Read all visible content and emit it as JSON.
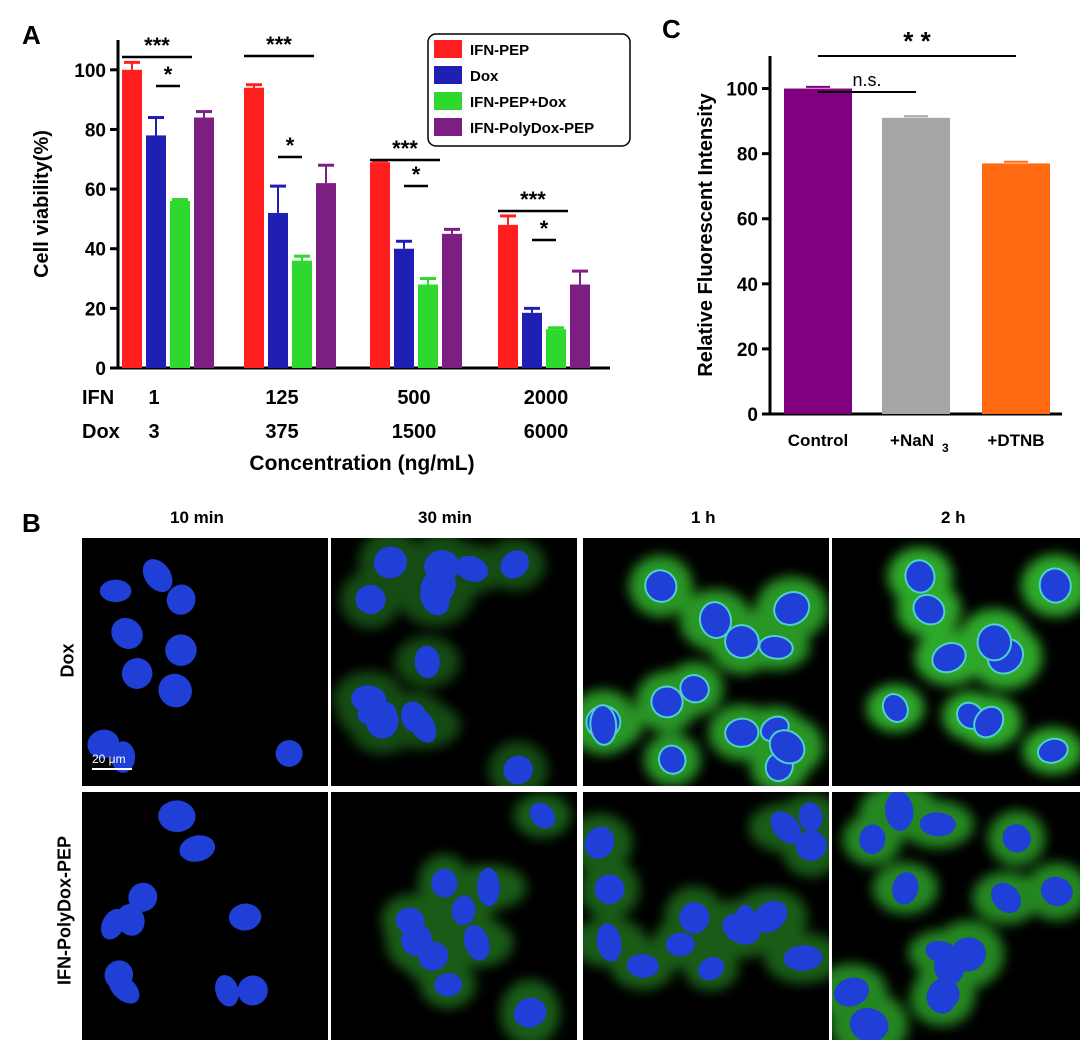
{
  "panels": {
    "a": "A",
    "b": "B",
    "c": "C"
  },
  "chart_data": [
    {
      "type": "bar",
      "title": "",
      "ylabel": "Cell viability(%)",
      "xlabel": "Concentration (ng/mL)",
      "ylim": [
        0,
        110
      ],
      "yticks": [
        0,
        20,
        40,
        60,
        80,
        100
      ],
      "row_labels": [
        "IFN",
        "Dox"
      ],
      "categories": [
        {
          "ifn": "1",
          "dox": "3"
        },
        {
          "ifn": "125",
          "dox": "375"
        },
        {
          "ifn": "500",
          "dox": "1500"
        },
        {
          "ifn": "2000",
          "dox": "6000"
        }
      ],
      "series": [
        {
          "name": "IFN-PEP",
          "color": "#ff1f1f",
          "values": [
            100,
            94,
            69,
            48
          ],
          "errors": [
            2.5,
            1,
            0.5,
            3
          ]
        },
        {
          "name": "Dox",
          "color": "#1f1fb3",
          "values": [
            78,
            52,
            40,
            18.5
          ],
          "errors": [
            6,
            9,
            2.5,
            1.5
          ]
        },
        {
          "name": "IFN-PEP+Dox",
          "color": "#2ed82e",
          "values": [
            56,
            36,
            28,
            13
          ],
          "errors": [
            0.5,
            1.5,
            2,
            0.5
          ]
        },
        {
          "name": "IFN-PolyDox-PEP",
          "color": "#7d1f82",
          "values": [
            84,
            62,
            45,
            28
          ],
          "errors": [
            2,
            6,
            1.5,
            4.5
          ]
        }
      ],
      "legend_position": "top-right",
      "significance": [
        {
          "label": "***",
          "group": 0,
          "from": 0,
          "to": 2
        },
        {
          "label": "*",
          "group": 0,
          "from": 1,
          "to": 2
        },
        {
          "label": "***",
          "group": 1,
          "from": 0,
          "to": 2
        },
        {
          "label": "*",
          "group": 1,
          "from": 1,
          "to": 2
        },
        {
          "label": "***",
          "group": 2,
          "from": 0,
          "to": 2
        },
        {
          "label": "*",
          "group": 2,
          "from": 1,
          "to": 2
        },
        {
          "label": "***",
          "group": 3,
          "from": 0,
          "to": 2
        },
        {
          "label": "*",
          "group": 3,
          "from": 1,
          "to": 2
        }
      ]
    },
    {
      "type": "bar",
      "title": "",
      "ylabel": "Relative Fluorescent Intensity",
      "xlabel": "",
      "ylim": [
        0,
        110
      ],
      "yticks": [
        0,
        20,
        40,
        60,
        80,
        100
      ],
      "categories": [
        "Control",
        "+NaN3",
        "+DTNB"
      ],
      "category_display": [
        {
          "main": "Control",
          "sub": ""
        },
        {
          "main": "+NaN",
          "sub": "3"
        },
        {
          "main": "+DTNB",
          "sub": ""
        }
      ],
      "values": [
        100,
        91,
        77
      ],
      "errors": [
        0.5,
        0.5,
        0.5
      ],
      "colors": [
        "#800080",
        "#a6a6a6",
        "#ff6a13"
      ],
      "significance": [
        {
          "label": "n.s.",
          "from": 0,
          "to": 1
        },
        {
          "label": "* *",
          "from": 0,
          "to": 2
        }
      ]
    }
  ],
  "microscopy": {
    "columns": [
      "10 min",
      "30 min",
      "1 h",
      "2 h"
    ],
    "rows": [
      "Dox",
      "IFN-PolyDox-PEP"
    ],
    "scale_bar": "20 μm"
  }
}
